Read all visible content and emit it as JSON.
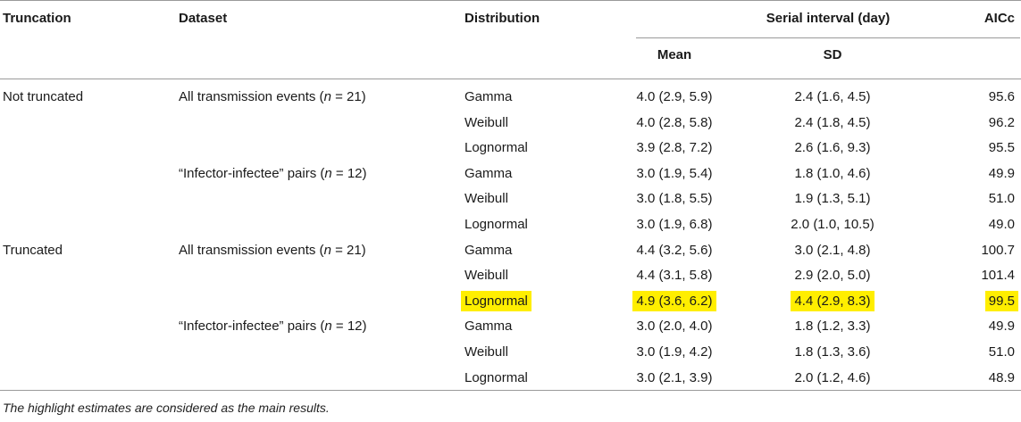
{
  "header": {
    "truncation": "Truncation",
    "dataset": "Dataset",
    "distribution": "Distribution",
    "serial_interval": "Serial interval (day)",
    "mean": "Mean",
    "sd": "SD",
    "aicc": "AICc"
  },
  "rows": [
    {
      "truncation": "Not truncated",
      "dataset_pre": "All transmission events (",
      "dataset_n": "n",
      "dataset_post": " = 21)",
      "distribution": "Gamma",
      "mean": "4.0 (2.9, 5.9)",
      "sd": "2.4 (1.6, 4.5)",
      "aicc": "95.6",
      "highlight": false
    },
    {
      "truncation": "",
      "dataset_pre": "",
      "dataset_n": "",
      "dataset_post": "",
      "distribution": "Weibull",
      "mean": "4.0 (2.8, 5.8)",
      "sd": "2.4 (1.8, 4.5)",
      "aicc": "96.2",
      "highlight": false
    },
    {
      "truncation": "",
      "dataset_pre": "",
      "dataset_n": "",
      "dataset_post": "",
      "distribution": "Lognormal",
      "mean": "3.9 (2.8, 7.2)",
      "sd": "2.6 (1.6, 9.3)",
      "aicc": "95.5",
      "highlight": false
    },
    {
      "truncation": "",
      "dataset_pre": "“Infector-infectee” pairs (",
      "dataset_n": "n",
      "dataset_post": " = 12)",
      "distribution": "Gamma",
      "mean": "3.0 (1.9, 5.4)",
      "sd": "1.8 (1.0, 4.6)",
      "aicc": "49.9",
      "highlight": false
    },
    {
      "truncation": "",
      "dataset_pre": "",
      "dataset_n": "",
      "dataset_post": "",
      "distribution": "Weibull",
      "mean": "3.0 (1.8, 5.5)",
      "sd": "1.9 (1.3, 5.1)",
      "aicc": "51.0",
      "highlight": false
    },
    {
      "truncation": "",
      "dataset_pre": "",
      "dataset_n": "",
      "dataset_post": "",
      "distribution": "Lognormal",
      "mean": "3.0 (1.9, 6.8)",
      "sd": "2.0 (1.0, 10.5)",
      "aicc": "49.0",
      "highlight": false
    },
    {
      "truncation": "Truncated",
      "dataset_pre": "All transmission events (",
      "dataset_n": "n",
      "dataset_post": " = 21)",
      "distribution": "Gamma",
      "mean": "4.4 (3.2, 5.6)",
      "sd": "3.0 (2.1, 4.8)",
      "aicc": "100.7",
      "highlight": false
    },
    {
      "truncation": "",
      "dataset_pre": "",
      "dataset_n": "",
      "dataset_post": "",
      "distribution": "Weibull",
      "mean": "4.4 (3.1, 5.8)",
      "sd": "2.9 (2.0, 5.0)",
      "aicc": "101.4",
      "highlight": false
    },
    {
      "truncation": "",
      "dataset_pre": "",
      "dataset_n": "",
      "dataset_post": "",
      "distribution": "Lognormal",
      "mean": "4.9 (3.6, 6.2)",
      "sd": "4.4 (2.9, 8.3)",
      "aicc": "99.5",
      "highlight": true
    },
    {
      "truncation": "",
      "dataset_pre": "“Infector-infectee” pairs (",
      "dataset_n": "n",
      "dataset_post": " = 12)",
      "distribution": "Gamma",
      "mean": "3.0 (2.0, 4.0)",
      "sd": "1.8 (1.2, 3.3)",
      "aicc": "49.9",
      "highlight": false
    },
    {
      "truncation": "",
      "dataset_pre": "",
      "dataset_n": "",
      "dataset_post": "",
      "distribution": "Weibull",
      "mean": "3.0 (1.9, 4.2)",
      "sd": "1.8 (1.3, 3.6)",
      "aicc": "51.0",
      "highlight": false
    },
    {
      "truncation": "",
      "dataset_pre": "",
      "dataset_n": "",
      "dataset_post": "",
      "distribution": "Lognormal",
      "mean": "3.0 (2.1, 3.9)",
      "sd": "2.0 (1.2, 4.6)",
      "aicc": "48.9",
      "highlight": false
    }
  ],
  "footnote": "The highlight estimates are considered as the main results.",
  "colors": {
    "highlight": "#ffee00",
    "rule": "#9a9a9a"
  }
}
